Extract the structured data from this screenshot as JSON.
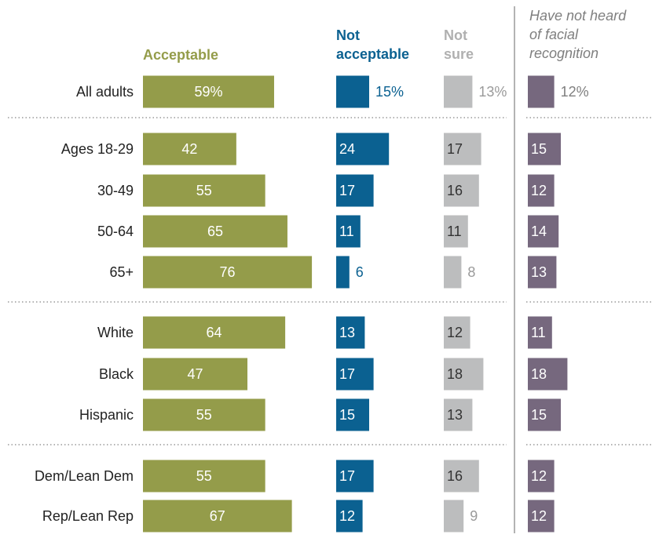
{
  "chart_data": {
    "type": "bar",
    "categories": [
      "All adults",
      "Ages 18-29",
      "30-49",
      "50-64",
      "65+",
      "White",
      "Black",
      "Hispanic",
      "Dem/Lean Dem",
      "Rep/Lean Rep"
    ],
    "series": [
      {
        "name": "Acceptable",
        "values": [
          59,
          42,
          55,
          65,
          76,
          64,
          47,
          55,
          55,
          67
        ],
        "labels": [
          "59%",
          "42",
          "55",
          "65",
          "76",
          "64",
          "47",
          "55",
          "55",
          "67"
        ],
        "color": "#949c4a"
      },
      {
        "name": "Not acceptable",
        "values": [
          15,
          24,
          17,
          11,
          6,
          13,
          17,
          15,
          17,
          12
        ],
        "labels": [
          "15%",
          "24",
          "17",
          "11",
          "6",
          "13",
          "17",
          "15",
          "17",
          "12"
        ],
        "color": "#0b6191"
      },
      {
        "name": "Not sure",
        "values": [
          13,
          17,
          16,
          11,
          8,
          12,
          18,
          13,
          16,
          9
        ],
        "labels": [
          "13%",
          "17",
          "16",
          "11",
          "8",
          "12",
          "18",
          "13",
          "16",
          "9"
        ],
        "color": "#bcbdbe"
      },
      {
        "name": "Have not heard of facial recognition",
        "values": [
          12,
          15,
          12,
          14,
          13,
          11,
          18,
          15,
          12,
          12
        ],
        "labels": [
          "12%",
          "15",
          "12",
          "14",
          "13",
          "11",
          "18",
          "15",
          "12",
          "12"
        ],
        "color": "#76687e"
      }
    ],
    "headers": {
      "acceptable": [
        "Acceptable"
      ],
      "not_acceptable": [
        "Not",
        "acceptable"
      ],
      "not_sure": [
        "Not",
        "sure"
      ],
      "not_heard": [
        "Have not heard",
        "of facial",
        "recognition"
      ]
    },
    "groups": [
      [
        0
      ],
      [
        1,
        2,
        3,
        4
      ],
      [
        5,
        6,
        7
      ],
      [
        8,
        9
      ]
    ],
    "legend": "column headers at top",
    "grid": false
  }
}
